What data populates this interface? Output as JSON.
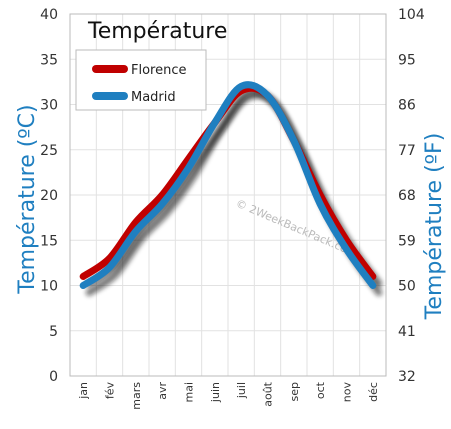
{
  "chart_data": {
    "type": "line",
    "title": "Température",
    "ylabel": "Température  (ºC)",
    "ylabel_right": "Température  (ºF)",
    "categories": [
      "jan",
      "fév",
      "mars",
      "avr",
      "mai",
      "juin",
      "juil",
      "août",
      "sep",
      "oct",
      "nov",
      "déc"
    ],
    "ylim": [
      0,
      40
    ],
    "yticks": [
      "0",
      "5",
      "10",
      "15",
      "20",
      "25",
      "30",
      "35",
      "40"
    ],
    "ylim_right": [
      32,
      104
    ],
    "yticks_right": [
      "32",
      "41",
      "50",
      "59",
      "68",
      "77",
      "86",
      "95",
      "104"
    ],
    "grid": true,
    "legend_position": "top-left",
    "series": [
      {
        "name": "Florence",
        "color": "#c00000",
        "values": [
          11,
          13,
          17,
          20,
          24,
          28,
          31.5,
          31,
          26,
          20,
          15,
          11
        ]
      },
      {
        "name": "Madrid",
        "color": "#1f7fc0",
        "values": [
          10,
          12,
          16,
          19,
          23,
          28,
          32,
          31,
          26,
          19,
          14,
          10
        ]
      }
    ],
    "watermark": "© 2WeekBackPack.com"
  }
}
